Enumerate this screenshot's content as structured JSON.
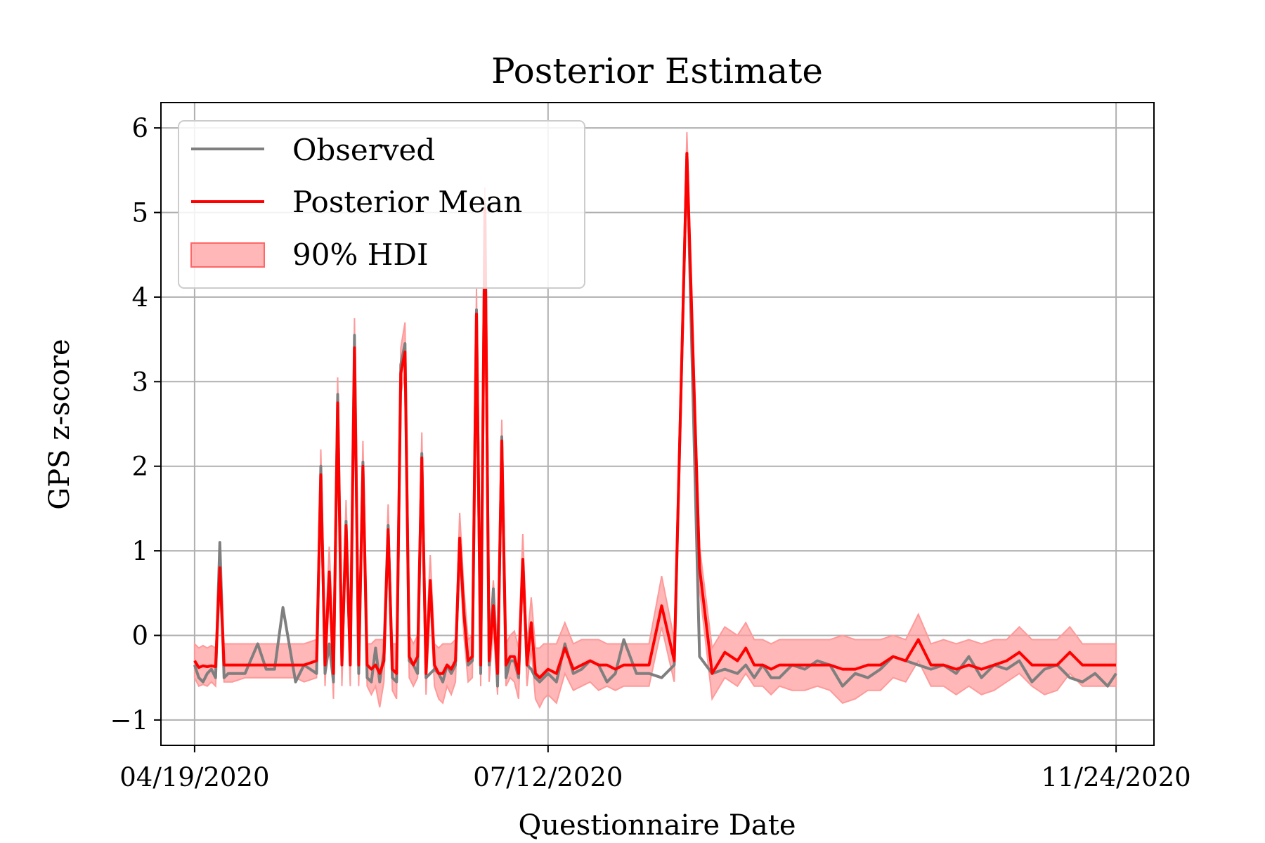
{
  "chart_data": {
    "type": "line",
    "title": "Posterior Estimate",
    "xlabel": "Questionnaire Date",
    "ylabel": "GPS z-score",
    "x_tick_labels": [
      "04/19/2020",
      "07/12/2020",
      "11/24/2020"
    ],
    "x_ticks": [
      "2020-04-19",
      "2020-07-12",
      "2020-11-24"
    ],
    "xlim": [
      "2020-04-11",
      "2020-12-03"
    ],
    "y_tick_labels": [
      "−1",
      "0",
      "1",
      "2",
      "3",
      "4",
      "5",
      "6"
    ],
    "y_ticks": [
      -1,
      0,
      1,
      2,
      3,
      4,
      5,
      6
    ],
    "ylim": [
      -1.3,
      6.3
    ],
    "grid": true,
    "legend_position": "upper left",
    "legend": [
      "Observed",
      "Posterior Mean",
      "90% HDI"
    ],
    "colors": {
      "observed": "#7f7f7f",
      "posterior_mean": "#ff0000",
      "hdi": "#ff9999"
    },
    "x": [
      "2020-04-19",
      "2020-04-20",
      "2020-04-21",
      "2020-04-22",
      "2020-04-23",
      "2020-04-24",
      "2020-04-25",
      "2020-04-26",
      "2020-04-27",
      "2020-04-28",
      "2020-05-01",
      "2020-05-04",
      "2020-05-06",
      "2020-05-08",
      "2020-05-10",
      "2020-05-13",
      "2020-05-15",
      "2020-05-18",
      "2020-05-19",
      "2020-05-20",
      "2020-05-21",
      "2020-05-22",
      "2020-05-23",
      "2020-05-24",
      "2020-05-25",
      "2020-05-26",
      "2020-05-27",
      "2020-05-28",
      "2020-05-29",
      "2020-05-30",
      "2020-05-31",
      "2020-06-01",
      "2020-06-02",
      "2020-06-03",
      "2020-06-04",
      "2020-06-05",
      "2020-06-06",
      "2020-06-07",
      "2020-06-08",
      "2020-06-09",
      "2020-06-10",
      "2020-06-11",
      "2020-06-12",
      "2020-06-13",
      "2020-06-14",
      "2020-06-15",
      "2020-06-16",
      "2020-06-17",
      "2020-06-18",
      "2020-06-19",
      "2020-06-20",
      "2020-06-21",
      "2020-06-22",
      "2020-06-23",
      "2020-06-24",
      "2020-06-25",
      "2020-06-26",
      "2020-06-27",
      "2020-06-28",
      "2020-06-29",
      "2020-06-30",
      "2020-07-01",
      "2020-07-02",
      "2020-07-03",
      "2020-07-04",
      "2020-07-05",
      "2020-07-06",
      "2020-07-07",
      "2020-07-08",
      "2020-07-09",
      "2020-07-10",
      "2020-07-11",
      "2020-07-12",
      "2020-07-14",
      "2020-07-16",
      "2020-07-18",
      "2020-07-20",
      "2020-07-22",
      "2020-07-24",
      "2020-07-26",
      "2020-07-28",
      "2020-07-30",
      "2020-08-02",
      "2020-08-05",
      "2020-08-08",
      "2020-08-11",
      "2020-08-14",
      "2020-08-17",
      "2020-08-20",
      "2020-08-23",
      "2020-08-26",
      "2020-08-28",
      "2020-08-30",
      "2020-09-01",
      "2020-09-03",
      "2020-09-05",
      "2020-09-08",
      "2020-09-11",
      "2020-09-14",
      "2020-09-17",
      "2020-09-20",
      "2020-09-23",
      "2020-09-26",
      "2020-09-29",
      "2020-10-02",
      "2020-10-05",
      "2020-10-08",
      "2020-10-11",
      "2020-10-14",
      "2020-10-17",
      "2020-10-20",
      "2020-10-23",
      "2020-10-26",
      "2020-10-29",
      "2020-11-01",
      "2020-11-04",
      "2020-11-07",
      "2020-11-10",
      "2020-11-13",
      "2020-11-16",
      "2020-11-19",
      "2020-11-22",
      "2020-11-24"
    ],
    "series": [
      {
        "name": "Observed",
        "values": [
          -0.35,
          -0.5,
          -0.55,
          -0.45,
          -0.4,
          -0.5,
          1.1,
          -0.5,
          -0.45,
          -0.45,
          -0.45,
          -0.1,
          -0.4,
          -0.4,
          0.33,
          -0.55,
          -0.35,
          -0.45,
          2.0,
          -0.45,
          -0.1,
          -0.55,
          2.85,
          -0.3,
          1.35,
          -0.3,
          3.55,
          -0.45,
          2.05,
          -0.5,
          -0.55,
          -0.15,
          -0.55,
          -0.2,
          1.3,
          -0.5,
          -0.55,
          3.2,
          3.45,
          -0.3,
          -0.35,
          -0.45,
          2.15,
          -0.5,
          -0.45,
          -0.4,
          -0.45,
          -0.55,
          -0.35,
          -0.45,
          -0.35,
          1.15,
          0.3,
          -0.35,
          -0.3,
          3.85,
          -0.45,
          5.1,
          -0.35,
          0.55,
          -0.6,
          2.35,
          -0.5,
          -0.3,
          -0.3,
          -0.5,
          0.9,
          -0.35,
          -0.4,
          -0.5,
          -0.55,
          -0.5,
          -0.45,
          -0.55,
          -0.1,
          -0.45,
          -0.4,
          -0.3,
          -0.35,
          -0.55,
          -0.45,
          -0.05,
          -0.45,
          -0.45,
          -0.5,
          -0.35,
          5.7,
          -0.25,
          -0.45,
          -0.4,
          -0.45,
          -0.35,
          -0.5,
          -0.35,
          -0.5,
          -0.5,
          -0.35,
          -0.4,
          -0.3,
          -0.35,
          -0.6,
          -0.45,
          -0.5,
          -0.4,
          -0.25,
          -0.3,
          -0.35,
          -0.4,
          -0.35,
          -0.45,
          -0.25,
          -0.5,
          -0.35,
          -0.4,
          -0.3,
          -0.55,
          -0.4,
          -0.35,
          -0.5,
          -0.55,
          -0.45,
          -0.6,
          -0.45
        ]
      },
      {
        "name": "Posterior Mean",
        "values": [
          -0.3,
          -0.38,
          -0.36,
          -0.37,
          -0.36,
          -0.37,
          0.8,
          -0.35,
          -0.35,
          -0.35,
          -0.35,
          -0.35,
          -0.35,
          -0.35,
          -0.35,
          -0.35,
          -0.35,
          -0.3,
          1.9,
          -0.35,
          0.75,
          -0.45,
          2.75,
          -0.35,
          1.3,
          -0.35,
          3.4,
          -0.35,
          2.0,
          -0.35,
          -0.4,
          -0.35,
          -0.45,
          -0.3,
          1.25,
          -0.4,
          -0.45,
          3.1,
          3.35,
          -0.25,
          -0.35,
          -0.25,
          2.1,
          -0.45,
          0.65,
          -0.35,
          -0.45,
          -0.45,
          -0.35,
          -0.4,
          -0.3,
          1.15,
          0.25,
          -0.3,
          -0.25,
          3.8,
          -0.35,
          5.05,
          -0.3,
          0.35,
          -0.45,
          2.3,
          -0.35,
          -0.25,
          -0.25,
          -0.45,
          0.9,
          -0.35,
          0.15,
          -0.45,
          -0.5,
          -0.45,
          -0.4,
          -0.45,
          -0.15,
          -0.4,
          -0.35,
          -0.3,
          -0.35,
          -0.35,
          -0.4,
          -0.35,
          -0.35,
          -0.35,
          0.35,
          -0.3,
          5.7,
          0.8,
          -0.45,
          -0.2,
          -0.3,
          -0.15,
          -0.35,
          -0.35,
          -0.4,
          -0.35,
          -0.35,
          -0.35,
          -0.35,
          -0.35,
          -0.4,
          -0.4,
          -0.35,
          -0.35,
          -0.25,
          -0.3,
          -0.05,
          -0.35,
          -0.35,
          -0.4,
          -0.35,
          -0.4,
          -0.35,
          -0.3,
          -0.2,
          -0.35,
          -0.35,
          -0.35,
          -0.2,
          -0.35,
          -0.35,
          -0.35,
          -0.35
        ]
      }
    ],
    "hdi_band": {
      "name": "90% HDI",
      "lower": [
        -0.5,
        -0.6,
        -0.58,
        -0.6,
        -0.55,
        -0.6,
        0.55,
        -0.55,
        -0.55,
        -0.55,
        -0.5,
        -0.5,
        -0.5,
        -0.5,
        -0.5,
        -0.5,
        -0.55,
        -0.5,
        1.6,
        -0.6,
        0.5,
        -0.75,
        2.45,
        -0.6,
        1.05,
        -0.6,
        3.15,
        -0.6,
        1.75,
        -0.6,
        -0.7,
        -0.6,
        -0.85,
        -0.55,
        1.0,
        -0.65,
        -0.75,
        2.85,
        3.1,
        -0.5,
        -0.6,
        -0.5,
        1.85,
        -0.7,
        0.4,
        -0.6,
        -0.75,
        -0.8,
        -0.6,
        -0.7,
        -0.55,
        0.9,
        0.0,
        -0.55,
        -0.5,
        3.55,
        -0.6,
        4.8,
        -0.55,
        0.1,
        -0.7,
        2.05,
        -0.6,
        -0.5,
        -0.55,
        -0.75,
        0.65,
        -0.6,
        -0.15,
        -0.75,
        -0.85,
        -0.75,
        -0.7,
        -0.8,
        -0.45,
        -0.65,
        -0.6,
        -0.55,
        -0.65,
        -0.6,
        -0.65,
        -0.6,
        -0.6,
        -0.6,
        0.1,
        -0.55,
        5.45,
        0.55,
        -0.75,
        -0.5,
        -0.6,
        -0.45,
        -0.6,
        -0.6,
        -0.7,
        -0.6,
        -0.65,
        -0.65,
        -0.6,
        -0.65,
        -0.8,
        -0.75,
        -0.65,
        -0.65,
        -0.5,
        -0.55,
        -0.3,
        -0.6,
        -0.6,
        -0.7,
        -0.6,
        -0.7,
        -0.65,
        -0.55,
        -0.45,
        -0.6,
        -0.7,
        -0.65,
        -0.45,
        -0.6,
        -0.6,
        -0.6,
        -0.6
      ],
      "upper": [
        -0.1,
        -0.15,
        -0.12,
        -0.15,
        -0.12,
        -0.15,
        1.05,
        -0.1,
        -0.1,
        -0.1,
        -0.1,
        -0.1,
        -0.1,
        -0.1,
        -0.1,
        -0.1,
        -0.1,
        -0.05,
        2.2,
        -0.1,
        1.05,
        -0.15,
        3.05,
        -0.1,
        1.6,
        -0.1,
        3.75,
        -0.1,
        2.3,
        -0.1,
        -0.1,
        -0.05,
        -0.05,
        -0.05,
        1.55,
        -0.1,
        -0.1,
        3.4,
        3.7,
        0.0,
        -0.1,
        0.0,
        2.4,
        -0.15,
        0.95,
        -0.1,
        -0.15,
        -0.1,
        -0.1,
        -0.1,
        -0.05,
        1.45,
        0.55,
        -0.05,
        0.0,
        4.1,
        -0.1,
        5.3,
        -0.05,
        0.65,
        -0.15,
        2.55,
        -0.1,
        0.0,
        0.05,
        -0.15,
        1.2,
        -0.1,
        0.45,
        -0.15,
        -0.15,
        -0.1,
        -0.1,
        -0.1,
        0.15,
        -0.1,
        -0.05,
        -0.05,
        -0.05,
        -0.1,
        -0.1,
        -0.1,
        -0.1,
        -0.1,
        0.7,
        -0.05,
        5.95,
        1.05,
        -0.15,
        0.1,
        0.0,
        0.15,
        -0.05,
        -0.05,
        -0.1,
        -0.05,
        -0.05,
        -0.05,
        -0.05,
        -0.05,
        0.0,
        -0.05,
        -0.05,
        -0.05,
        0.0,
        -0.05,
        0.25,
        -0.1,
        -0.05,
        -0.1,
        -0.05,
        -0.1,
        -0.05,
        -0.05,
        0.1,
        -0.05,
        -0.05,
        -0.05,
        0.1,
        -0.1,
        -0.1,
        -0.1,
        -0.1
      ]
    }
  }
}
